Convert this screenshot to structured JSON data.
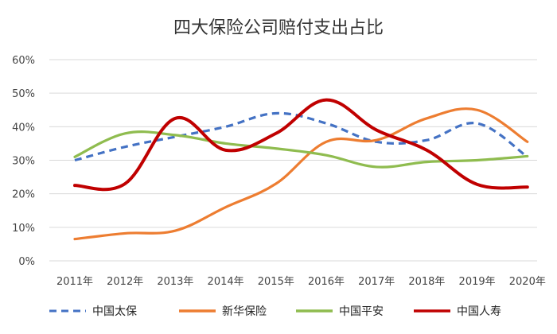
{
  "chart_data": {
    "type": "line",
    "title": "四大保险公司赔付支出占比",
    "xlabel": "",
    "ylabel": "",
    "categories": [
      "2011年",
      "2012年",
      "2013年",
      "2014年",
      "2015年",
      "2016年",
      "2017年",
      "2018年",
      "2019年",
      "2020年"
    ],
    "y_ticks": [
      "0%",
      "10%",
      "20%",
      "30%",
      "40%",
      "50%",
      "60%"
    ],
    "ylim": [
      0,
      60
    ],
    "grid": true,
    "legend_position": "bottom",
    "series": [
      {
        "name": "中国太保",
        "color": "#4472C4",
        "dashed": true,
        "values": [
          30,
          34,
          37,
          40,
          44,
          41,
          35.5,
          36,
          41,
          31
        ]
      },
      {
        "name": "新华保险",
        "color": "#ED7D31",
        "dashed": false,
        "values": [
          6.5,
          8.2,
          9,
          16,
          23,
          35.5,
          36,
          42.5,
          45,
          35.5
        ]
      },
      {
        "name": "中国平安",
        "color": "#8FBC4F",
        "dashed": false,
        "values": [
          31,
          38,
          37.5,
          35,
          33.5,
          31.5,
          28,
          29.5,
          30,
          31.2
        ]
      },
      {
        "name": "中国人寿",
        "color": "#C00000",
        "dashed": false,
        "values": [
          22.5,
          23,
          42.5,
          33,
          38,
          48,
          39,
          33,
          22.8,
          22
        ]
      }
    ]
  }
}
